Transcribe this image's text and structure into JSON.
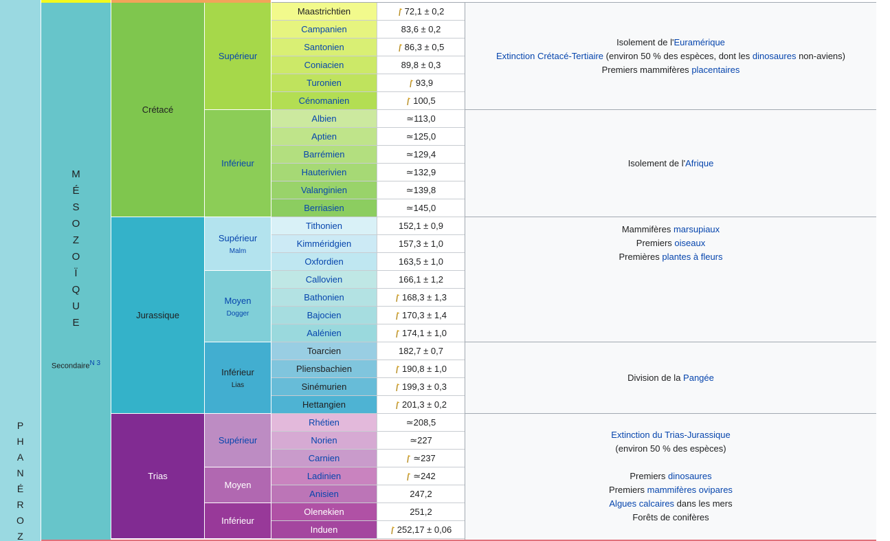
{
  "eon": {
    "letters": [
      "P",
      "H",
      "A",
      "N",
      "É",
      "R",
      "O",
      "Z"
    ],
    "color": "#9ad9e1"
  },
  "era": {
    "letters": [
      "M",
      "É",
      "S",
      "O",
      "Z",
      "O",
      "Ï",
      "Q",
      "U",
      "E"
    ],
    "alt_name": "Secondaire",
    "note": "N 3",
    "color": "#67c5ca"
  },
  "periods": [
    {
      "name": "Crétacé",
      "color": "#7fc64e"
    },
    {
      "name": "Jurassique",
      "color": "#34b2c9"
    },
    {
      "name": "Trias",
      "color": "#812b92"
    }
  ],
  "epochs": [
    {
      "name": "Supérieur",
      "sub": "",
      "color": "#a6d84a"
    },
    {
      "name": "Inférieur",
      "sub": "",
      "color": "#8ccd57"
    },
    {
      "name": "Supérieur",
      "sub": "Malm",
      "color": "#b3e3ee"
    },
    {
      "name": "Moyen",
      "sub": "Dogger",
      "color": "#80cfd8"
    },
    {
      "name": "Inférieur",
      "sub": "Lias",
      "color": "#42aed0"
    },
    {
      "name": "Supérieur",
      "sub": "",
      "color": "#bd8cc3"
    },
    {
      "name": "Moyen",
      "sub": "",
      "color": "#b168b1"
    },
    {
      "name": "Inférieur",
      "sub": "",
      "color": "#983999"
    }
  ],
  "stages": [
    {
      "name": "Maastrichtien",
      "age": "72,1 ± 0,2",
      "gssp": true,
      "color": "#f2fa8c",
      "link": false
    },
    {
      "name": "Campanien",
      "age": "83,6 ± 0,2",
      "gssp": false,
      "color": "#e6f47f",
      "link": true
    },
    {
      "name": "Santonien",
      "age": "86,3 ± 0,5",
      "gssp": true,
      "color": "#d9ef74",
      "link": true
    },
    {
      "name": "Coniacien",
      "age": "89,8 ± 0,3",
      "gssp": false,
      "color": "#cce968",
      "link": true
    },
    {
      "name": "Turonien",
      "age": "93,9",
      "gssp": true,
      "color": "#bfe35d",
      "link": true
    },
    {
      "name": "Cénomanien",
      "age": "100,5",
      "gssp": true,
      "color": "#b3de53",
      "link": true
    },
    {
      "name": "Albien",
      "age": "≃113,0",
      "gssp": false,
      "color": "#cce99f",
      "link": true
    },
    {
      "name": "Aptien",
      "age": "≃125,0",
      "gssp": false,
      "color": "#bfe48a",
      "link": true
    },
    {
      "name": "Barrémien",
      "age": "≃129,4",
      "gssp": false,
      "color": "#b3df7f",
      "link": true
    },
    {
      "name": "Hauterivien",
      "age": "≃132,9",
      "gssp": false,
      "color": "#a6d975",
      "link": true
    },
    {
      "name": "Valanginien",
      "age": "≃139,8",
      "gssp": false,
      "color": "#99d36a",
      "link": true
    },
    {
      "name": "Berriasien",
      "age": "≃145,0",
      "gssp": false,
      "color": "#8ccd60",
      "link": true
    },
    {
      "name": "Tithonien",
      "age": "152,1 ± 0,9",
      "gssp": false,
      "color": "#d9f1f7",
      "link": true
    },
    {
      "name": "Kimméridgien",
      "age": "157,3 ± 1,0",
      "gssp": false,
      "color": "#cceaf5",
      "link": true
    },
    {
      "name": "Oxfordien",
      "age": "163,5 ± 1,0",
      "gssp": false,
      "color": "#bfe7f1",
      "link": true
    },
    {
      "name": "Callovien",
      "age": "166,1 ± 1,2",
      "gssp": false,
      "color": "#bfe7e5",
      "link": true
    },
    {
      "name": "Bathonien",
      "age": "168,3 ± 1,3",
      "gssp": true,
      "color": "#b3e2e3",
      "link": true
    },
    {
      "name": "Bajocien",
      "age": "170,3 ± 1,4",
      "gssp": true,
      "color": "#a6dde0",
      "link": true
    },
    {
      "name": "Aalénien",
      "age": "174,1 ± 1,0",
      "gssp": true,
      "color": "#9ad9dd",
      "link": true
    },
    {
      "name": "Toarcien",
      "age": "182,7 ± 0,7",
      "gssp": false,
      "color": "#99cee3",
      "link": false
    },
    {
      "name": "Pliensbachien",
      "age": "190,8 ± 1,0",
      "gssp": true,
      "color": "#80c5dd",
      "link": false
    },
    {
      "name": "Sinémurien",
      "age": "199,3 ± 0,3",
      "gssp": true,
      "color": "#67bcd8",
      "link": false
    },
    {
      "name": "Hettangien",
      "age": "201,3 ± 0,2",
      "gssp": true,
      "color": "#4eb3d3",
      "link": false
    },
    {
      "name": "Rhétien",
      "age": "≃208,5",
      "gssp": false,
      "color": "#e3b9db",
      "link": true
    },
    {
      "name": "Norien",
      "age": "≃227",
      "gssp": false,
      "color": "#d6aad3",
      "link": true
    },
    {
      "name": "Carnien",
      "age": "≃237",
      "gssp": true,
      "color": "#c99bcb",
      "link": true
    },
    {
      "name": "Ladinien",
      "age": "≃242",
      "gssp": true,
      "color": "#c983bf",
      "link": true
    },
    {
      "name": "Anisien",
      "age": "247,2",
      "gssp": false,
      "color": "#bc75b7",
      "link": true
    },
    {
      "name": "Olenekien",
      "age": "251,2",
      "gssp": false,
      "color": "#b051a5",
      "link": true
    },
    {
      "name": "Induen",
      "age": "252,17 ± 0,06",
      "gssp": true,
      "color": "#a4469f",
      "link": true
    }
  ],
  "events": {
    "cretace_sup": [
      [
        {
          "t": "Isolement de l'"
        },
        {
          "t": "Euramérique",
          "link": true
        }
      ],
      [
        {
          "t": "Extinction Crétacé-Tertiaire",
          "link": true
        },
        {
          "t": " (environ 50 % des espèces, dont les "
        },
        {
          "t": "dinosaures",
          "link": true
        },
        {
          "t": " non-aviens)"
        }
      ],
      [
        {
          "t": "Premiers mammifères "
        },
        {
          "t": "placentaires",
          "link": true
        }
      ]
    ],
    "cretace_inf": [
      [
        {
          "t": "Isolement de l'"
        },
        {
          "t": "Afrique",
          "link": true
        }
      ]
    ],
    "jurassique_sup": [
      [
        {
          "t": "Mammifères "
        },
        {
          "t": "marsupiaux",
          "link": true
        }
      ],
      [
        {
          "t": "Premiers "
        },
        {
          "t": "oiseaux",
          "link": true
        }
      ],
      [
        {
          "t": "Premières "
        },
        {
          "t": "plantes à fleurs",
          "link": true
        }
      ]
    ],
    "jurassique_inf": [
      [
        {
          "t": "Division de la "
        },
        {
          "t": "Pangée",
          "link": true
        }
      ]
    ],
    "trias": [
      [
        {
          "t": "Extinction du Trias-Jurassique",
          "link": true
        }
      ],
      [
        {
          "t": "(environ 50 % des espèces)"
        }
      ],
      [
        {
          "t": " "
        }
      ],
      [
        {
          "t": "Premiers "
        },
        {
          "t": "dinosaures",
          "link": true
        }
      ],
      [
        {
          "t": "Premiers "
        },
        {
          "t": "mammifères ovipares",
          "link": true
        }
      ],
      [
        {
          "t": "Algues calcaires",
          "link": true
        },
        {
          "t": " dans les mers"
        }
      ],
      [
        {
          "t": "Forêts de conifères"
        }
      ]
    ]
  }
}
